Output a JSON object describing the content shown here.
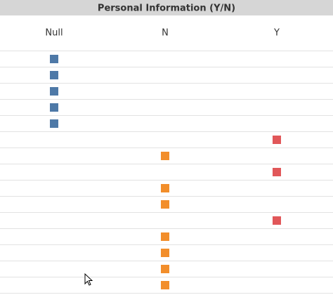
{
  "header": {
    "title": "Personal Information (Y/N)"
  },
  "table": {
    "columns": [
      "Null",
      "N",
      "Y"
    ],
    "rows": [
      "Null",
      "Null",
      "Null",
      "Null",
      "Null",
      "Y",
      "N",
      "Y",
      "N",
      "N",
      "Y",
      "N",
      "N",
      "N",
      "N"
    ],
    "colors": {
      "Null": "#4e79a7",
      "N": "#f28e2b",
      "Y": "#e15759"
    }
  }
}
